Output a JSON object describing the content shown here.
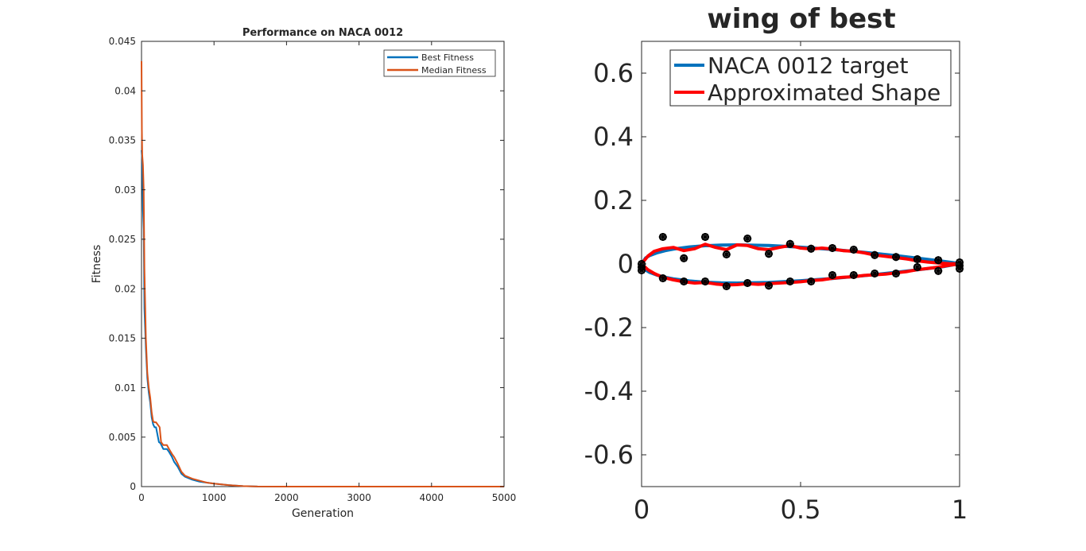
{
  "chart_data": [
    {
      "type": "line",
      "title": "Performance on NACA 0012",
      "xlabel": "Generation",
      "ylabel": "Fitness",
      "xlim": [
        0,
        5000
      ],
      "ylim": [
        0,
        0.045
      ],
      "xticks": [
        0,
        1000,
        2000,
        3000,
        4000,
        5000
      ],
      "xtick_labels": [
        "0",
        "1000",
        "2000",
        "3000",
        "4000",
        "5000"
      ],
      "yticks": [
        0,
        0.005,
        0.01,
        0.015,
        0.02,
        0.025,
        0.03,
        0.035,
        0.04,
        0.045
      ],
      "ytick_labels": [
        "0",
        "0.005",
        "0.01",
        "0.015",
        "0.02",
        "0.025",
        "0.03",
        "0.035",
        "0.04",
        "0.045"
      ],
      "grid": false,
      "legend_position": "top-right",
      "series": [
        {
          "name": "Best Fitness",
          "color": "#0072BD",
          "x": [
            0,
            10,
            20,
            30,
            40,
            60,
            80,
            100,
            120,
            140,
            160,
            180,
            200,
            240,
            260,
            300,
            350,
            380,
            420,
            450,
            500,
            550,
            600,
            700,
            800,
            900,
            1000,
            1200,
            1400,
            1600,
            2000,
            3000,
            4000,
            5000
          ],
          "y": [
            0.034,
            0.033,
            0.028,
            0.026,
            0.018,
            0.014,
            0.011,
            0.0095,
            0.0085,
            0.007,
            0.0063,
            0.006,
            0.006,
            0.0045,
            0.0044,
            0.0038,
            0.0038,
            0.0035,
            0.003,
            0.0025,
            0.002,
            0.0013,
            0.001,
            0.0007,
            0.0005,
            0.0004,
            0.0003,
            0.00015,
            5e-05,
            1e-05,
            0,
            0,
            0,
            0
          ]
        },
        {
          "name": "Median Fitness",
          "color": "#D95319",
          "x": [
            0,
            5,
            10,
            20,
            30,
            40,
            60,
            80,
            100,
            120,
            140,
            160,
            180,
            200,
            250,
            270,
            300,
            350,
            380,
            420,
            450,
            500,
            550,
            600,
            700,
            800,
            900,
            1000,
            1200,
            1400,
            1600,
            2000,
            3000,
            4000,
            5000
          ],
          "y": [
            0.043,
            0.036,
            0.0335,
            0.0325,
            0.03,
            0.022,
            0.015,
            0.0115,
            0.01,
            0.009,
            0.0075,
            0.0066,
            0.0065,
            0.0065,
            0.006,
            0.0045,
            0.0042,
            0.0042,
            0.0038,
            0.0033,
            0.003,
            0.0023,
            0.0015,
            0.0011,
            0.0008,
            0.0006,
            0.0004,
            0.0003,
            0.00015,
            5e-05,
            1e-05,
            0,
            0,
            0,
            0
          ]
        }
      ]
    },
    {
      "type": "line",
      "title": "wing of best",
      "xlabel": "",
      "ylabel": "",
      "xlim": [
        0,
        1
      ],
      "ylim": [
        -0.7,
        0.7
      ],
      "xticks": [
        0,
        0.5,
        1
      ],
      "xtick_labels": [
        "0",
        "0.5",
        "1"
      ],
      "yticks": [
        0.6,
        0.4,
        0.2,
        0,
        -0.2,
        -0.4,
        -0.6
      ],
      "ytick_labels": [
        "0.6",
        "0.4",
        "0.2",
        "0",
        "-0.2",
        "-0.4",
        "-0.6"
      ],
      "grid": false,
      "legend_position": "top-right",
      "series": [
        {
          "name": "NACA 0012 target",
          "color": "#0072BD",
          "x": [
            0,
            0.0125,
            0.025,
            0.05,
            0.075,
            0.1,
            0.15,
            0.2,
            0.25,
            0.3,
            0.4,
            0.5,
            0.6,
            0.7,
            0.8,
            0.9,
            0.95,
            1,
            0.95,
            0.9,
            0.8,
            0.7,
            0.6,
            0.5,
            0.4,
            0.3,
            0.25,
            0.2,
            0.15,
            0.1,
            0.075,
            0.05,
            0.025,
            0.0125,
            0
          ],
          "y": [
            0,
            0.0189,
            0.0262,
            0.0355,
            0.042,
            0.0468,
            0.0535,
            0.0574,
            0.0594,
            0.06,
            0.058,
            0.0529,
            0.0457,
            0.0367,
            0.0262,
            0.0145,
            0.0081,
            0.0013,
            -0.0081,
            -0.0145,
            -0.0262,
            -0.0367,
            -0.0457,
            -0.0529,
            -0.058,
            -0.06,
            -0.0594,
            -0.0574,
            -0.0535,
            -0.0468,
            -0.042,
            -0.0355,
            -0.0262,
            -0.0189,
            0
          ]
        },
        {
          "name": "Approximated Shape",
          "color": "#FF0000",
          "x": [
            0,
            0.02,
            0.04,
            0.067,
            0.1,
            0.133,
            0.167,
            0.2,
            0.233,
            0.267,
            0.3,
            0.333,
            0.367,
            0.4,
            0.433,
            0.467,
            0.5,
            0.533,
            0.567,
            0.6,
            0.633,
            0.667,
            0.7,
            0.733,
            0.767,
            0.8,
            0.833,
            0.867,
            0.9,
            0.933,
            0.967,
            1,
            0.967,
            0.933,
            0.9,
            0.867,
            0.833,
            0.8,
            0.767,
            0.733,
            0.7,
            0.667,
            0.633,
            0.6,
            0.567,
            0.533,
            0.5,
            0.467,
            0.433,
            0.4,
            0.367,
            0.333,
            0.3,
            0.267,
            0.233,
            0.2,
            0.167,
            0.133,
            0.1,
            0.067,
            0.04,
            0.02,
            0
          ],
          "y": [
            0,
            0.025,
            0.04,
            0.048,
            0.052,
            0.042,
            0.048,
            0.062,
            0.052,
            0.045,
            0.06,
            0.058,
            0.048,
            0.045,
            0.052,
            0.058,
            0.05,
            0.047,
            0.05,
            0.047,
            0.042,
            0.04,
            0.035,
            0.028,
            0.024,
            0.02,
            0.016,
            0.01,
            0.006,
            0.003,
            0.001,
            0,
            -0.004,
            -0.01,
            -0.014,
            -0.018,
            -0.024,
            -0.028,
            -0.032,
            -0.034,
            -0.036,
            -0.04,
            -0.042,
            -0.045,
            -0.05,
            -0.052,
            -0.056,
            -0.058,
            -0.06,
            -0.062,
            -0.064,
            -0.062,
            -0.065,
            -0.066,
            -0.063,
            -0.058,
            -0.06,
            -0.056,
            -0.05,
            -0.042,
            -0.03,
            -0.018,
            0
          ]
        }
      ],
      "control_points": {
        "marker": "circle-star",
        "color": "#000000",
        "x": [
          0,
          0,
          0,
          0.067,
          0.133,
          0.2,
          0.267,
          0.333,
          0.4,
          0.467,
          0.533,
          0.6,
          0.667,
          0.733,
          0.8,
          0.867,
          0.933,
          1,
          1,
          1,
          0.067,
          0.133,
          0.2,
          0.267,
          0.333,
          0.4,
          0.467,
          0.533,
          0.6,
          0.667,
          0.733,
          0.8,
          0.867,
          0.933
        ],
        "y": [
          0,
          -0.01,
          -0.02,
          0.085,
          0.018,
          0.085,
          0.03,
          0.08,
          0.032,
          0.063,
          0.048,
          0.05,
          0.045,
          0.028,
          0.022,
          0.015,
          0.012,
          0.005,
          -0.005,
          -0.015,
          -0.045,
          -0.055,
          -0.055,
          -0.07,
          -0.06,
          -0.068,
          -0.055,
          -0.055,
          -0.035,
          -0.035,
          -0.03,
          -0.03,
          -0.01,
          -0.022
        ]
      }
    }
  ]
}
